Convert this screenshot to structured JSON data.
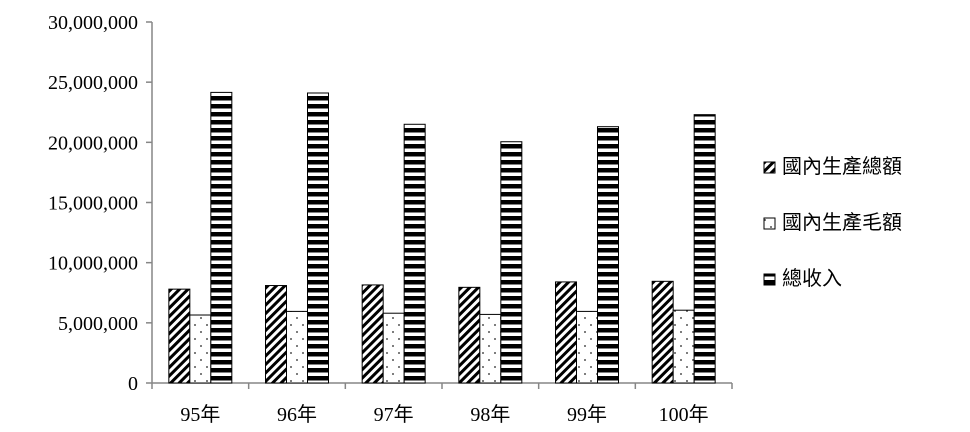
{
  "chart_data": {
    "type": "bar",
    "categories": [
      "95年",
      "96年",
      "97年",
      "98年",
      "99年",
      "100年"
    ],
    "series": [
      {
        "name": "國內生產總額",
        "pattern": "diagonal-hatch",
        "values": [
          7800000,
          8100000,
          8150000,
          7950000,
          8400000,
          8450000
        ]
      },
      {
        "name": "國內生產毛額",
        "pattern": "dots",
        "values": [
          5650000,
          5950000,
          5800000,
          5700000,
          5950000,
          6050000
        ]
      },
      {
        "name": "總收入",
        "pattern": "horizontal-stripes",
        "values": [
          24150000,
          24100000,
          21500000,
          20050000,
          21300000,
          22300000
        ]
      }
    ],
    "yticks": [
      "0",
      "5,000,000",
      "10,000,000",
      "15,000,000",
      "20,000,000",
      "25,000,000",
      "30,000,000"
    ],
    "ylim": [
      0,
      30000000
    ],
    "title": "",
    "xlabel": "",
    "ylabel": "",
    "grid": false,
    "legend_position": "right"
  }
}
